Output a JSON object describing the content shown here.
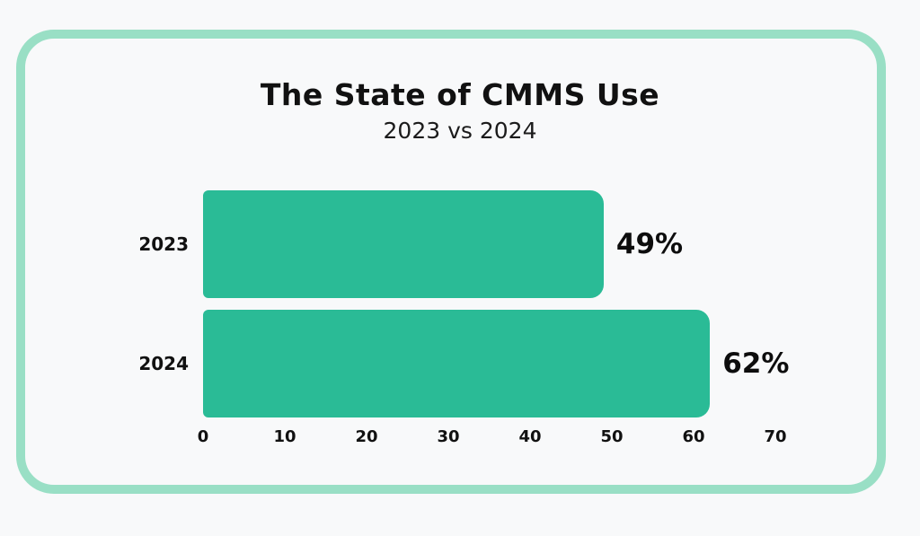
{
  "chart": {
    "title": "The State of CMMS Use",
    "subtitle": "2023 vs 2024"
  },
  "chart_data": {
    "type": "bar",
    "orientation": "horizontal",
    "title": "The State of CMMS Use",
    "subtitle": "2023 vs 2024",
    "categories": [
      "2023",
      "2024"
    ],
    "values": [
      49,
      62
    ],
    "value_labels": [
      "49%",
      "62%"
    ],
    "xlabel": "",
    "ylabel": "",
    "xlim": [
      0,
      70
    ],
    "xticks": [
      "0",
      "10",
      "20",
      "30",
      "40",
      "50",
      "60",
      "70"
    ],
    "grid": false,
    "legend": false
  },
  "colors": {
    "background": "#f8f9fa",
    "card_border": "#99dfc5",
    "bar": "#2abb96",
    "text": "#111111"
  }
}
